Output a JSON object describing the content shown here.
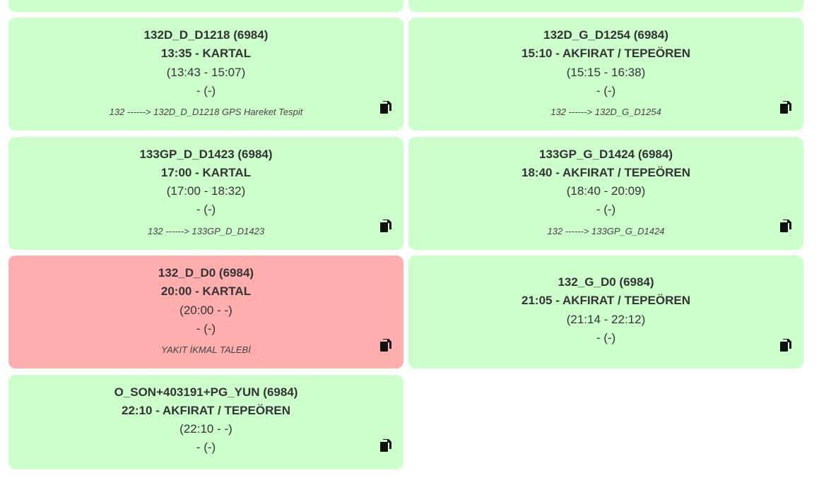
{
  "colors": {
    "green_card": "#ccffcc",
    "red_card": "#ffaeae",
    "text": "#333333"
  },
  "icons": {
    "copy": "copy-icon"
  },
  "cards": [
    {
      "title": "132D_D_D1218 (6984)",
      "time": "13:35 - KARTAL",
      "range": "(13:43 - 15:07)",
      "dash": "- (-)",
      "note": "132 ------> 132D_D_D1218 GPS Hareket Tespit",
      "status": "green"
    },
    {
      "title": "132D_G_D1254 (6984)",
      "time": "15:10 - AKFIRAT / TEPEÖREN",
      "range": "(15:15 - 16:38)",
      "dash": "- (-)",
      "note": "132 ------> 132D_G_D1254",
      "status": "green"
    },
    {
      "title": "133GP_D_D1423 (6984)",
      "time": "17:00 - KARTAL",
      "range": "(17:00 - 18:32)",
      "dash": "- (-)",
      "note": "132 ------> 133GP_D_D1423",
      "status": "green"
    },
    {
      "title": "133GP_G_D1424 (6984)",
      "time": "18:40 - AKFIRAT / TEPEÖREN",
      "range": "(18:40 - 20:09)",
      "dash": "- (-)",
      "note": "132 ------> 133GP_G_D1424",
      "status": "green"
    },
    {
      "title": "132_D_D0 (6984)",
      "time": "20:00 - KARTAL",
      "range": "(20:00 - -)",
      "dash": "- (-)",
      "note": "YAKIT İKMAL TALEBİ",
      "status": "red"
    },
    {
      "title": "132_G_D0 (6984)",
      "time": "21:05 - AKFIRAT / TEPEÖREN",
      "range": "(21:14 - 22:12)",
      "dash": "- (-)",
      "note": "",
      "status": "green"
    },
    {
      "title": "O_SON+403191+PG_YUN (6984)",
      "time": "22:10 - AKFIRAT / TEPEÖREN",
      "range": "(22:10 - -)",
      "dash": "- (-)",
      "note": "",
      "status": "green"
    }
  ]
}
